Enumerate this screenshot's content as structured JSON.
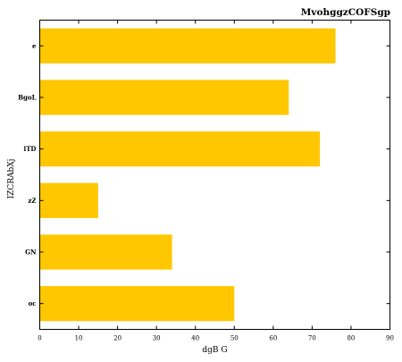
{
  "chart_data": {
    "type": "bar",
    "orientation": "horizontal",
    "title": "MvohggzCOFSgp",
    "xlabel": "dgB G",
    "ylabel": "IZCRAbXj",
    "categories": [
      "e",
      "BgoL",
      "lTD",
      "zZ",
      "GN",
      "oc"
    ],
    "values": [
      76,
      64,
      72,
      15,
      34,
      50
    ],
    "xlim": [
      0,
      90
    ],
    "xticks": [
      "0",
      "10",
      "20",
      "30",
      "40",
      "50",
      "60",
      "70",
      "80",
      "90"
    ],
    "grid": false,
    "bar_color": "#ffc700"
  }
}
